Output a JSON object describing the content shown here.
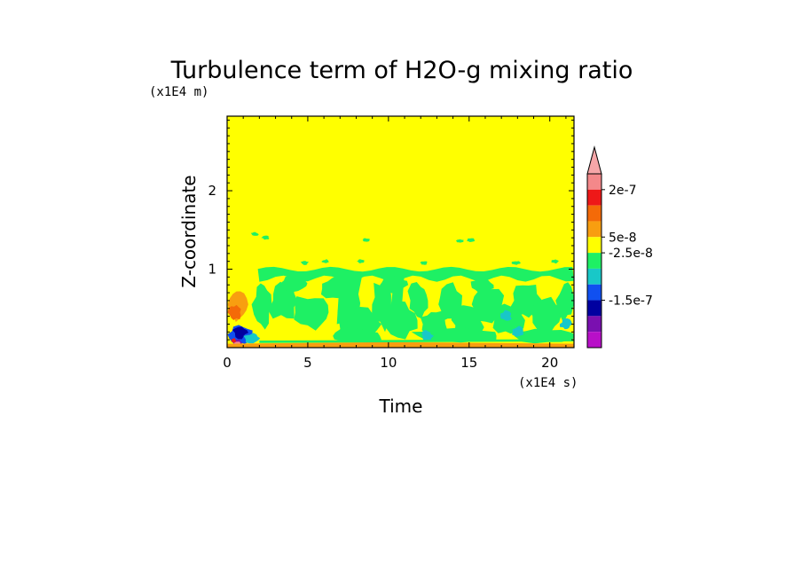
{
  "chart_data": {
    "type": "heatmap",
    "title": "Turbulence term of H2O-g mixing ratio",
    "xlabel": "Time",
    "ylabel": "Z-coordinate",
    "x_unit_label": "(x1E4 s)",
    "y_unit_label": "(x1E4 m)",
    "xlim": [
      0,
      21.5
    ],
    "ylim": [
      0,
      2.95
    ],
    "x_ticks": [
      0,
      5,
      10,
      15,
      20
    ],
    "x_tick_labels": [
      "0",
      "5",
      "10",
      "15",
      "20"
    ],
    "y_ticks": [
      1,
      2
    ],
    "y_tick_labels": [
      "1",
      "2"
    ],
    "background_level_color": "#ffff00",
    "colorbar": {
      "colors_top_to_bottom": [
        "#f4888a",
        "#ee1818",
        "#f46a08",
        "#f89e10",
        "#ffff00",
        "#1ef064",
        "#18c8c8",
        "#1050f0",
        "#0000a0",
        "#7a10b0",
        "#b810c8"
      ],
      "extend_arrow_color": "#f6a6a8",
      "labels": [
        "2e-7",
        "5e-8",
        "-2.5e-8",
        "-1.5e-7"
      ],
      "label_boundaries": [
        1,
        4,
        5,
        8
      ]
    },
    "regions": [
      {
        "level": "green",
        "note": "band near z 0.9-1.0 across time 2-21.5",
        "x": [
          2,
          21.5
        ],
        "y": [
          0.88,
          1.0
        ]
      },
      {
        "level": "green",
        "note": "streaky mid-layer structures",
        "x": [
          2,
          21.5
        ],
        "y": [
          0.1,
          0.9
        ]
      },
      {
        "level": "orange",
        "note": "near ground at early time",
        "x": [
          0,
          1.5
        ],
        "y": [
          0.3,
          0.8
        ]
      },
      {
        "level": "blue",
        "note": "strong negative near surface early",
        "x": [
          0.1,
          2.2
        ],
        "y": [
          0.02,
          0.3
        ]
      },
      {
        "level": "light-orange",
        "note": "thin layer at surface",
        "x": [
          0,
          21.5
        ],
        "y": [
          0.0,
          0.06
        ]
      }
    ]
  }
}
